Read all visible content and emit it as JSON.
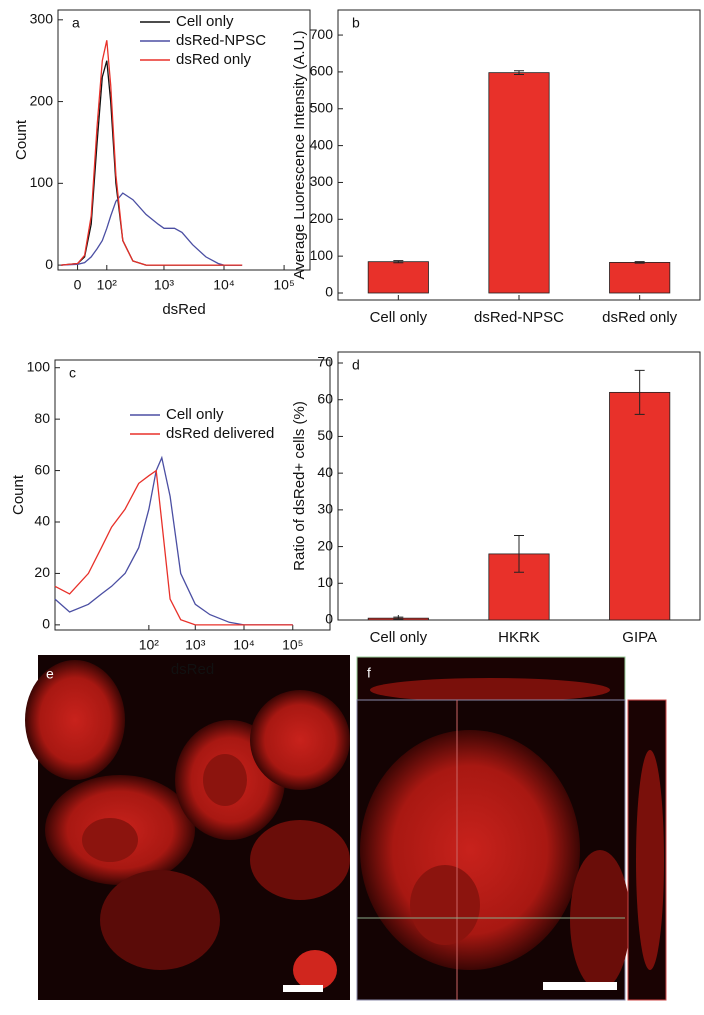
{
  "chart_data": [
    {
      "type": "line",
      "label": "a",
      "xlabel": "dsRed",
      "ylabel": "Count",
      "xscale": "biexponential",
      "xlim": [
        -60,
        270000
      ],
      "xticks": [
        0,
        {
          "value": 100,
          "label": "10²"
        },
        {
          "value": 1000,
          "label": "10³"
        },
        {
          "value": 10000,
          "label": "10⁴"
        },
        {
          "value": 100000,
          "label": "10⁵"
        }
      ],
      "ylim": [
        -6,
        312
      ],
      "yticks": [
        0,
        100,
        200,
        300
      ],
      "legend": "upper right",
      "x": [
        -50,
        0,
        20,
        40,
        60,
        80,
        100,
        120,
        150,
        200,
        300,
        500,
        800,
        1000,
        1500,
        2000,
        3000,
        5000,
        8000,
        10000,
        20000
      ],
      "series": [
        {
          "name": "Cell only",
          "color": "#111111",
          "values": [
            0,
            2,
            10,
            50,
            150,
            230,
            250,
            200,
            100,
            30,
            5,
            0,
            0,
            0,
            0,
            0,
            0,
            0,
            0,
            0,
            0
          ]
        },
        {
          "name": "dsRed-NPSC",
          "color": "#4b4fa3",
          "values": [
            0,
            1,
            3,
            10,
            20,
            30,
            45,
            60,
            78,
            88,
            80,
            62,
            50,
            45,
            45,
            40,
            25,
            10,
            2,
            0,
            0
          ]
        },
        {
          "name": "dsRed only",
          "color": "#e8312a",
          "values": [
            0,
            2,
            12,
            60,
            170,
            250,
            275,
            220,
            110,
            30,
            5,
            0,
            0,
            0,
            0,
            0,
            0,
            0,
            0,
            0,
            0
          ]
        }
      ]
    },
    {
      "type": "bar",
      "label": "b",
      "ylabel": "Average Luorescence Intensity (A.U.)",
      "color": "#e8312a",
      "categories": [
        "Cell only",
        "dsRed-NPSC",
        "dsRed only"
      ],
      "values": [
        85,
        598,
        83
      ],
      "errors": [
        3,
        5,
        2
      ],
      "ylim": [
        -19,
        768
      ],
      "yticks": [
        0,
        100,
        200,
        300,
        400,
        500,
        600,
        700
      ]
    },
    {
      "type": "line",
      "label": "c",
      "xlabel": "dsRed",
      "ylabel": "Count",
      "xscale": "biexponential",
      "xlim": [
        -1000,
        580000
      ],
      "xticks": [
        {
          "value": 100,
          "label": "10²"
        },
        {
          "value": 1000,
          "label": "10³"
        },
        {
          "value": 10000,
          "label": "10⁴"
        },
        {
          "value": 100000,
          "label": "10⁵"
        }
      ],
      "ylim": [
        -2,
        103
      ],
      "yticks": [
        0,
        20,
        40,
        60,
        80,
        100
      ],
      "legend": "upper right",
      "x": [
        -1000,
        -500,
        -200,
        -100,
        -50,
        0,
        50,
        100,
        150,
        200,
        300,
        500,
        1000,
        2000,
        5000,
        10000,
        100000
      ],
      "series": [
        {
          "name": "Cell only",
          "color": "#4b4fa3",
          "values": [
            10,
            5,
            8,
            12,
            15,
            20,
            30,
            45,
            60,
            65,
            50,
            20,
            8,
            4,
            1,
            0,
            0
          ]
        },
        {
          "name": "dsRed delivered",
          "color": "#e8312a",
          "values": [
            15,
            12,
            20,
            30,
            38,
            45,
            55,
            58,
            60,
            40,
            10,
            2,
            0,
            0,
            0,
            0,
            0
          ]
        }
      ]
    },
    {
      "type": "bar",
      "label": "d",
      "ylabel": "Ratio of dsRed+ cells (%)",
      "color": "#e8312a",
      "categories": [
        "Cell only",
        "HKRK",
        "GIPA"
      ],
      "values": [
        0.5,
        18,
        62
      ],
      "errors": [
        0.3,
        5,
        6
      ],
      "ylim": [
        0,
        73
      ],
      "yticks": [
        0,
        10,
        20,
        30,
        40,
        50,
        60,
        70
      ]
    }
  ],
  "image_panels": [
    {
      "label": "e"
    },
    {
      "label": "f"
    }
  ]
}
